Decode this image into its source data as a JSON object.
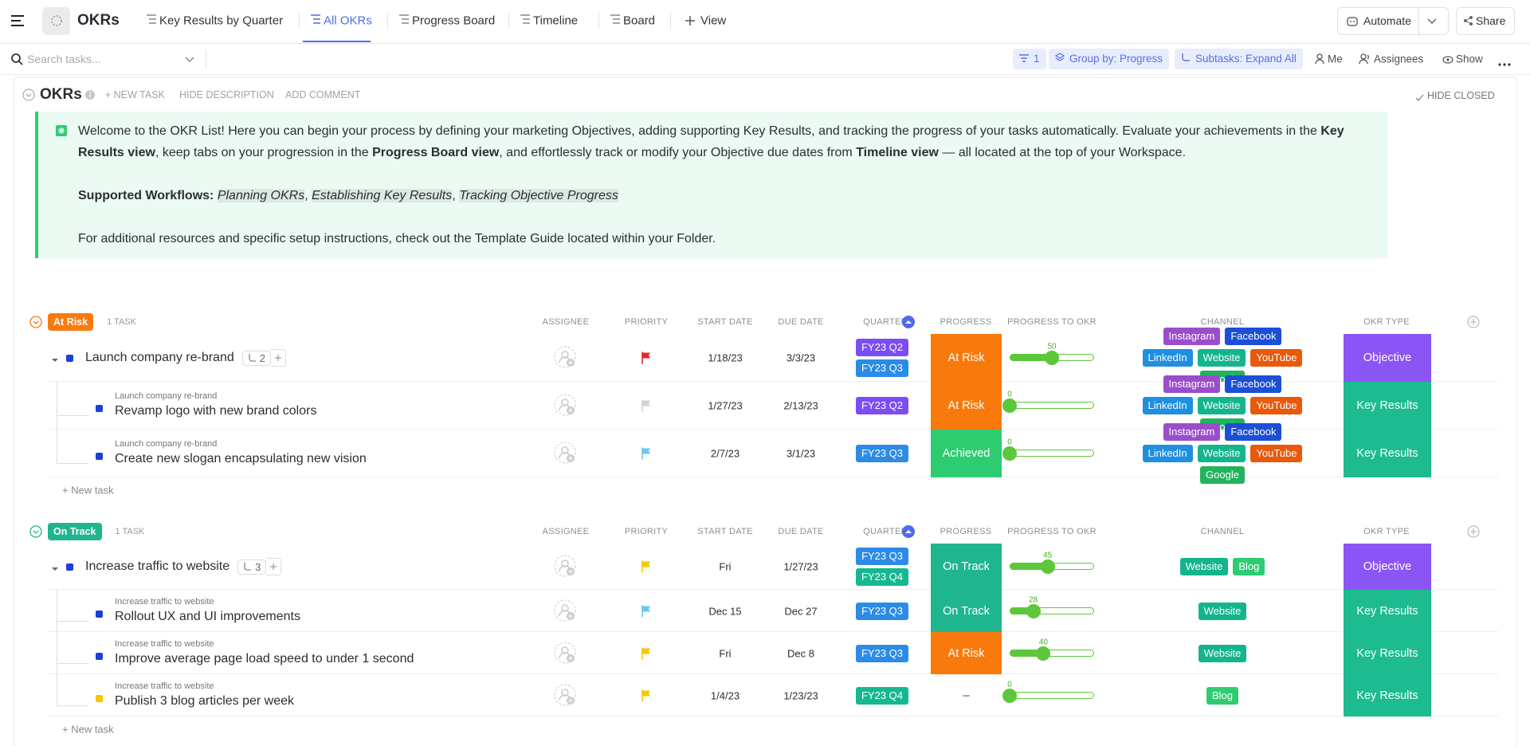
{
  "topbar": {
    "title": "OKRs",
    "views": [
      "Key Results by Quarter",
      "All OKRs",
      "Progress Board",
      "Timeline",
      "Board"
    ],
    "active_view": 1,
    "add_view": "View",
    "automate": "Automate",
    "share": "Share"
  },
  "toolbar": {
    "search": "Search tasks...",
    "filter_count": 1,
    "group_by": "Group by: Progress",
    "subtasks": "Subtasks: Expand All",
    "me": "Me",
    "assignees": "Assignees",
    "show": "Show"
  },
  "list": {
    "title": "OKRs",
    "actions": [
      "+ NEW TASK",
      "HIDE DESCRIPTION",
      "ADD COMMENT"
    ],
    "hide_closed": "HIDE CLOSED"
  },
  "description": {
    "paragraphs": [
      [
        {
          "text": "Welcome to the OKR List! Here you can begin your process by defining your marketing Objectives, adding supporting Key Results, and tracking the progress of your tasks automatically. Evaluate your achievements in the "
        },
        {
          "text": "Key Results view",
          "style": "bold"
        },
        {
          "text": ", keep tabs on your progression in the "
        },
        {
          "text": "Progress Board view",
          "style": "bold"
        },
        {
          "text": ", and effortlessly track or modify your Objective due dates from "
        },
        {
          "text": "Timeline view",
          "style": "bold"
        },
        {
          "text": " — all located at the top of your Workspace."
        }
      ],
      [
        {
          "text": "Supported Workflows: ",
          "style": "bold"
        },
        {
          "text": "Planning OKRs",
          "style": "italic"
        },
        {
          "text": ", "
        },
        {
          "text": "Establishing Key Results",
          "style": "italic"
        },
        {
          "text": ", "
        },
        {
          "text": "Tracking Objective Progress",
          "style": "italic"
        }
      ],
      [
        {
          "text": "For additional resources and specific setup instructions, check out the Template Guide located within your Folder."
        }
      ]
    ]
  },
  "columns": [
    "ASSIGNEE",
    "PRIORITY",
    "START DATE",
    "DUE DATE",
    "QUARTER",
    "PROGRESS",
    "PROGRESS TO OKR",
    "CHANNEL",
    "OKR TYPE"
  ],
  "groups": [
    {
      "status": {
        "label": "At Risk",
        "color": "#f97a0c"
      },
      "count": "1 TASK",
      "new_task": "+ New task",
      "rows": [
        {
          "name": "Launch company re-brand",
          "subtasks": 2,
          "status_color": "#1b3fd8",
          "priority_color": "#e8262b",
          "start": "1/18/23",
          "due": "3/3/23",
          "quarters": [
            {
              "label": "FY23 Q2",
              "color": "#7b4df4"
            },
            {
              "label": "FY23 Q3",
              "color": "#2b8be6"
            }
          ],
          "progress": {
            "label": "At Risk",
            "color": "#f97a0c"
          },
          "okr_progress": 50,
          "channels": [
            {
              "name": "Instagram",
              "color": "#9b4dca"
            },
            {
              "name": "Facebook",
              "color": "#1a4fd6"
            },
            {
              "name": "LinkedIn",
              "color": "#1f8fe0"
            },
            {
              "name": "Website",
              "color": "#14b48c"
            },
            {
              "name": "YouTube",
              "color": "#e8590c"
            },
            {
              "name": "Google",
              "color": "#22b35e"
            }
          ],
          "okr_type": {
            "label": "Objective",
            "color": "#8b55f6"
          }
        },
        {
          "parent": "Launch company re-brand",
          "name": "Revamp logo with new brand colors",
          "status_color": "#1b3fd8",
          "priority_color": "#d3d3d3",
          "start": "1/27/23",
          "due": "2/13/23",
          "quarters": [
            {
              "label": "FY23 Q2",
              "color": "#7b4df4"
            }
          ],
          "progress": {
            "label": "At Risk",
            "color": "#f97a0c"
          },
          "okr_progress": 0,
          "channels": [
            {
              "name": "Instagram",
              "color": "#9b4dca"
            },
            {
              "name": "Facebook",
              "color": "#1a4fd6"
            },
            {
              "name": "LinkedIn",
              "color": "#1f8fe0"
            },
            {
              "name": "Website",
              "color": "#14b48c"
            },
            {
              "name": "YouTube",
              "color": "#e8590c"
            },
            {
              "name": "Google",
              "color": "#22b35e"
            }
          ],
          "okr_type": {
            "label": "Key Results",
            "color": "#1dbb8f"
          }
        },
        {
          "parent": "Launch company re-brand",
          "name": "Create new slogan encapsulating new vision",
          "status_color": "#1b3fd8",
          "priority_color": "#6cc6f5",
          "start": "2/7/23",
          "due": "3/1/23",
          "quarters": [
            {
              "label": "FY23 Q3",
              "color": "#2b8be6"
            }
          ],
          "progress": {
            "label": "Achieved",
            "color": "#2ecc71"
          },
          "okr_progress": 0,
          "channels": [
            {
              "name": "Instagram",
              "color": "#9b4dca"
            },
            {
              "name": "Facebook",
              "color": "#1a4fd6"
            },
            {
              "name": "LinkedIn",
              "color": "#1f8fe0"
            },
            {
              "name": "Website",
              "color": "#14b48c"
            },
            {
              "name": "YouTube",
              "color": "#e8590c"
            },
            {
              "name": "Google",
              "color": "#22b35e"
            }
          ],
          "okr_type": {
            "label": "Key Results",
            "color": "#1dbb8f"
          }
        }
      ]
    },
    {
      "status": {
        "label": "On Track",
        "color": "#1fb58f"
      },
      "count": "1 TASK",
      "new_task": "+ New task",
      "rows": [
        {
          "name": "Increase traffic to website",
          "subtasks": 3,
          "status_color": "#1b3fd8",
          "priority_color": "#f7c600",
          "start": "Fri",
          "due": "1/27/23",
          "quarters": [
            {
              "label": "FY23 Q3",
              "color": "#2b8be6"
            },
            {
              "label": "FY23 Q4",
              "color": "#16b891"
            }
          ],
          "progress": {
            "label": "On Track",
            "color": "#1fb58f"
          },
          "okr_progress": 45,
          "channels": [
            {
              "name": "Website",
              "color": "#14b48c"
            },
            {
              "name": "Blog",
              "color": "#2ecc71"
            }
          ],
          "okr_type": {
            "label": "Objective",
            "color": "#8b55f6"
          }
        },
        {
          "parent": "Increase traffic to website",
          "name": "Rollout UX and UI improvements",
          "status_color": "#1b3fd8",
          "priority_color": "#6cc6f5",
          "start": "Dec 15",
          "due": "Dec 27",
          "quarters": [
            {
              "label": "FY23 Q3",
              "color": "#2b8be6"
            }
          ],
          "progress": {
            "label": "On Track",
            "color": "#1fb58f"
          },
          "okr_progress": 28,
          "channels": [
            {
              "name": "Website",
              "color": "#14b48c"
            }
          ],
          "okr_type": {
            "label": "Key Results",
            "color": "#1dbb8f"
          }
        },
        {
          "parent": "Increase traffic to website",
          "name": "Improve average page load speed to under 1 second",
          "status_color": "#1b3fd8",
          "priority_color": "#f7c600",
          "start": "Fri",
          "due": "Dec 8",
          "quarters": [
            {
              "label": "FY23 Q3",
              "color": "#2b8be6"
            }
          ],
          "progress": {
            "label": "At Risk",
            "color": "#f97a0c"
          },
          "okr_progress": 40,
          "channels": [
            {
              "name": "Website",
              "color": "#14b48c"
            }
          ],
          "okr_type": {
            "label": "Key Results",
            "color": "#1dbb8f"
          }
        },
        {
          "parent": "Increase traffic to website",
          "name": "Publish 3 blog articles per week",
          "status_color": "#f7c600",
          "priority_color": "#f7c600",
          "start": "1/4/23",
          "due": "1/23/23",
          "quarters": [
            {
              "label": "FY23 Q4",
              "color": "#16b891"
            }
          ],
          "progress": {
            "label": "–"
          },
          "okr_progress": 0,
          "channels": [
            {
              "name": "Blog",
              "color": "#2ecc71"
            }
          ],
          "okr_type": {
            "label": "Key Results",
            "color": "#1dbb8f"
          }
        }
      ]
    }
  ]
}
